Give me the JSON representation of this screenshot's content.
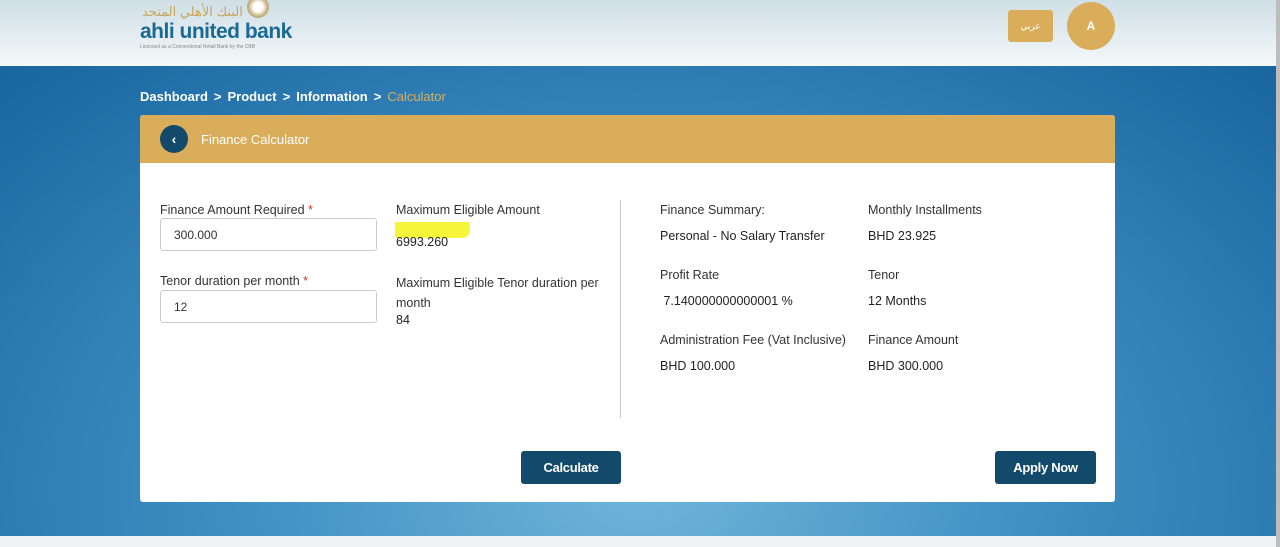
{
  "header": {
    "logo_arabic": "البنك الأهلي المتحد",
    "logo_name": "ahli united bank",
    "logo_tagline": "Licensed as a Conventional Retail Bank by the CBB",
    "language_button": "عربي",
    "avatar_initial": "A"
  },
  "breadcrumb": [
    "Dashboard",
    ">",
    "Product",
    ">",
    "Information",
    ">",
    "Calculator"
  ],
  "card": {
    "title": "Finance Calculator",
    "finance_amount_label": "Finance Amount Required",
    "finance_amount_value": "300.000",
    "tenor_label": "Tenor duration per month",
    "tenor_value": "12",
    "required_mark": "*",
    "max_amount_label": "Maximum Eligible Amount",
    "max_amount_value": "6993.260",
    "max_tenor_label": "Maximum Eligible Tenor duration per month",
    "max_tenor_value": "84",
    "summary": [
      {
        "label": "Finance Summary:",
        "value": "Personal - No Salary Transfer"
      },
      {
        "label": "Monthly Installments",
        "value": "BHD 23.925"
      },
      {
        "label": "Profit Rate",
        "value": " 7.140000000000001 %"
      },
      {
        "label": "Tenor",
        "value": "12 Months"
      },
      {
        "label": "Administration Fee (Vat Inclusive)",
        "value": "BHD 100.000"
      },
      {
        "label": "Finance Amount",
        "value": "BHD 300.000"
      }
    ],
    "calculate_button": "Calculate",
    "apply_button": "Apply Now"
  },
  "colors": {
    "gold": "#d9ad5a",
    "navy": "#134a6b",
    "highlight": "#f7f53a"
  }
}
